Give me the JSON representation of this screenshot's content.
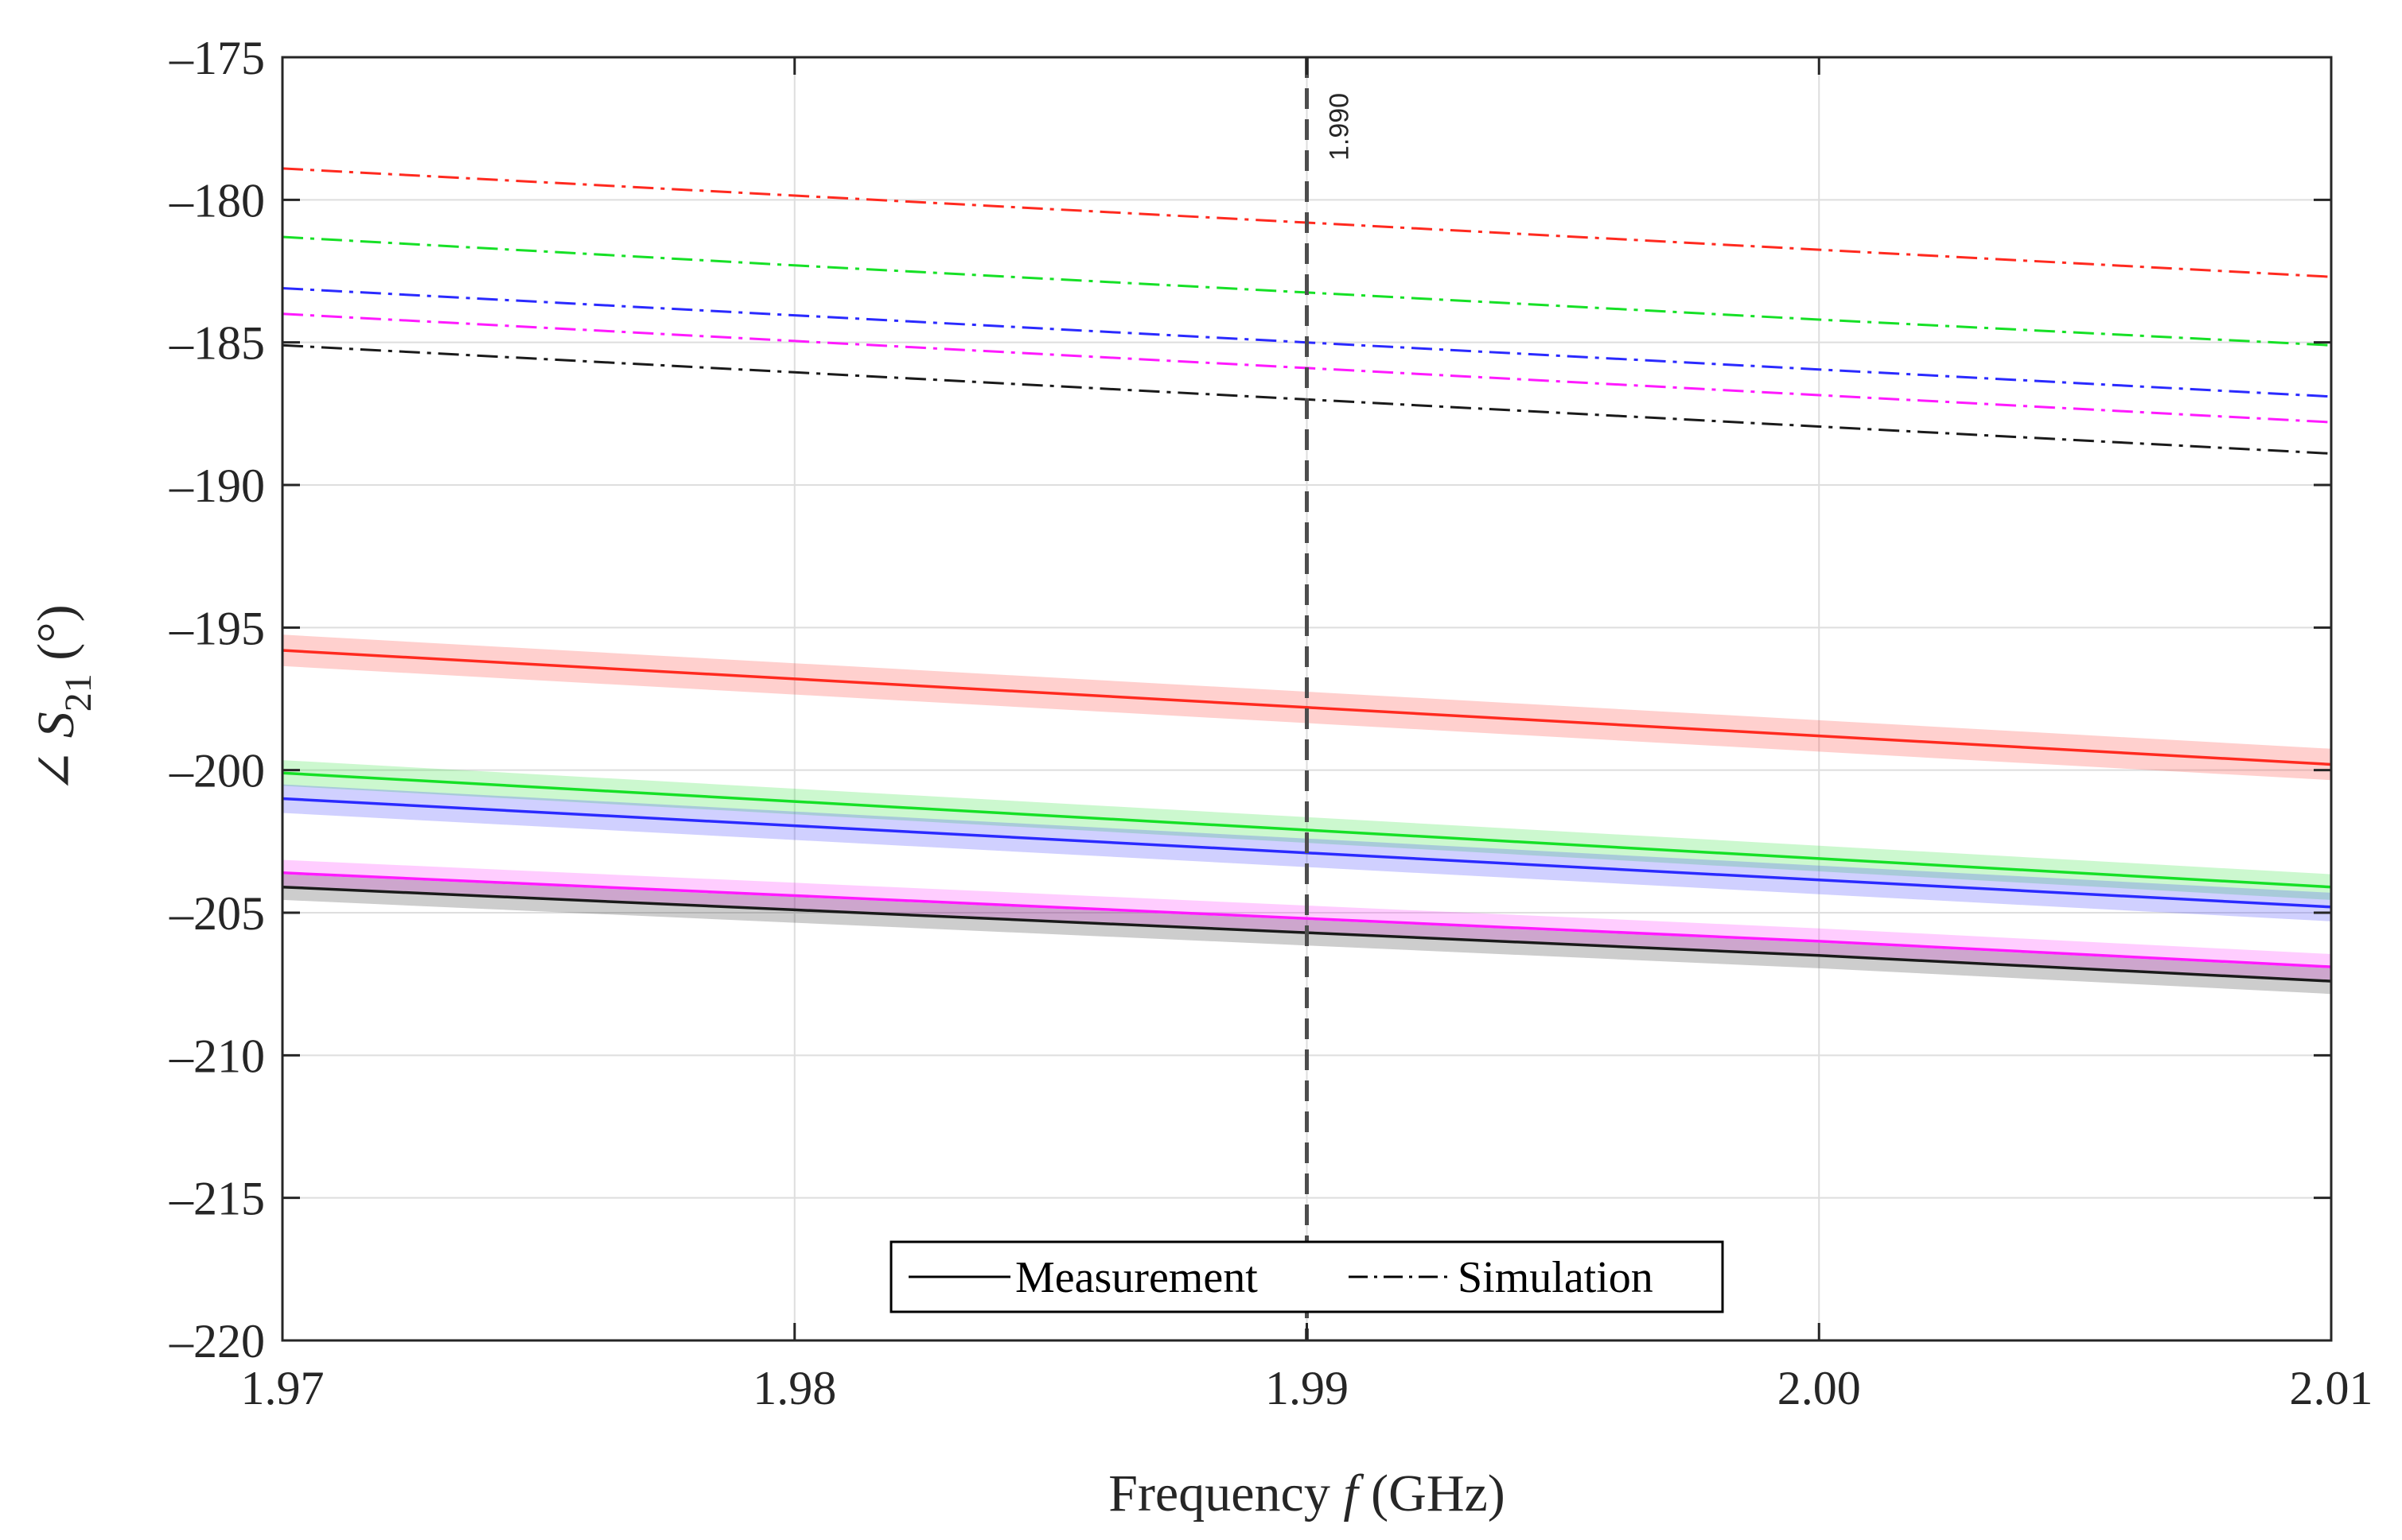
{
  "chart_data": {
    "type": "line",
    "title": "",
    "xlabel": {
      "prefix": "Frequency ",
      "variable": "f",
      "suffix": " (GHz)"
    },
    "ylabel": {
      "angle_symbol": "∠",
      "variable": "S",
      "subscript": "21",
      "unit": " (°)"
    },
    "xlim": [
      1.97,
      2.01
    ],
    "ylim": [
      -220,
      -175
    ],
    "xticks": [
      1.97,
      1.98,
      1.99,
      2.0,
      2.01
    ],
    "xtick_labels": [
      "1.97",
      "1.98",
      "1.99",
      "2.00",
      "2.01"
    ],
    "yticks": [
      -175,
      -180,
      -185,
      -190,
      -195,
      -200,
      -205,
      -210,
      -215,
      -220
    ],
    "ytick_labels": [
      "–175",
      "–180",
      "–185",
      "–190",
      "–195",
      "–200",
      "–205",
      "–210",
      "–215",
      "–220"
    ],
    "grid": true,
    "x": [
      1.97,
      1.98,
      1.99,
      2.0,
      2.01
    ],
    "series": [
      {
        "name": "Measurement (red)",
        "kind": "measurement",
        "color": "#ff2a1f",
        "values": [
          -195.8,
          -196.8,
          -197.8,
          -198.8,
          -199.8
        ],
        "band": 0.55
      },
      {
        "name": "Measurement (green)",
        "kind": "measurement",
        "color": "#16e026",
        "values": [
          -200.1,
          -201.1,
          -202.1,
          -203.1,
          -204.1
        ],
        "band": 0.45
      },
      {
        "name": "Measurement (blue)",
        "kind": "measurement",
        "color": "#2a2aff",
        "values": [
          -201.0,
          -201.95,
          -202.9,
          -203.85,
          -204.8
        ],
        "band": 0.5
      },
      {
        "name": "Measurement (magenta)",
        "kind": "measurement",
        "color": "#ff1aff",
        "values": [
          -203.6,
          -204.4,
          -205.2,
          -206.0,
          -206.9
        ],
        "band": 0.45
      },
      {
        "name": "Measurement (black)",
        "kind": "measurement",
        "color": "#1a1a1a",
        "values": [
          -204.1,
          -204.9,
          -205.7,
          -206.5,
          -207.4
        ],
        "band": 0.45
      },
      {
        "name": "Simulation (red)",
        "kind": "simulation",
        "color": "#ff2a1f",
        "values": [
          -178.9,
          -179.85,
          -180.8,
          -181.75,
          -182.7
        ]
      },
      {
        "name": "Simulation (green)",
        "kind": "simulation",
        "color": "#16e026",
        "values": [
          -181.3,
          -182.3,
          -183.25,
          -184.2,
          -185.1
        ]
      },
      {
        "name": "Simulation (blue)",
        "kind": "simulation",
        "color": "#2a2aff",
        "values": [
          -183.1,
          -184.05,
          -185.0,
          -185.95,
          -186.9
        ]
      },
      {
        "name": "Simulation (magenta)",
        "kind": "simulation",
        "color": "#ff1aff",
        "values": [
          -184.0,
          -184.95,
          -185.9,
          -186.85,
          -187.8
        ]
      },
      {
        "name": "Simulation (black)",
        "kind": "simulation",
        "color": "#1a1a1a",
        "values": [
          -185.1,
          -186.05,
          -187.0,
          -187.95,
          -188.9
        ]
      }
    ],
    "marker": {
      "x": 1.99,
      "label": "1.990",
      "color": "#4d4d4d"
    },
    "legend": {
      "position": "bottom-center",
      "entries": [
        {
          "label": "Measurement",
          "style": "solid"
        },
        {
          "label": "Simulation",
          "style": "dash-dot"
        }
      ]
    }
  }
}
